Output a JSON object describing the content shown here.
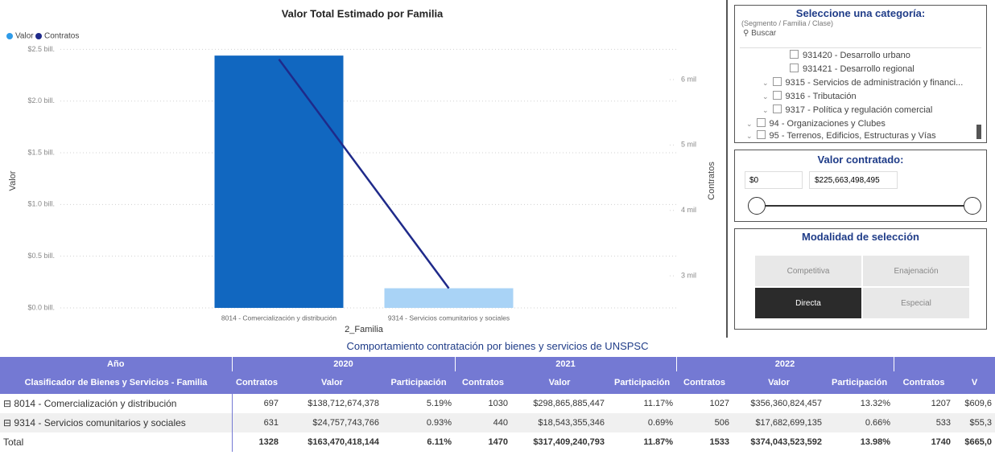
{
  "chart_data": {
    "type": "bar_line",
    "title": "Valor Total Estimado por Familia",
    "y_label": "Valor",
    "y2_label": "Contratos",
    "x_label": "2_Familia",
    "categories": [
      "8014 - Comercialización y distribución",
      "9314 - Servicios comunitarios y sociales"
    ],
    "series": [
      {
        "name": "Valor",
        "type": "bar",
        "legend_color": "#2f9be8",
        "colors": [
          "#1167c0",
          "#a9d3f6"
        ],
        "values": [
          2.44,
          0.19
        ]
      },
      {
        "name": "Contratos",
        "type": "line",
        "axis": "y2",
        "color": "#1f2a8a",
        "values": [
          6.31,
          2.81
        ]
      }
    ],
    "ylim": [
      0,
      2.55
    ],
    "yticks": [
      {
        "value": 0,
        "label": "$0.0 bill."
      },
      {
        "value": 0.5,
        "label": "$0.5 bill."
      },
      {
        "value": 1,
        "label": "$1.0 bill."
      },
      {
        "value": 1.5,
        "label": "$1.5 bill."
      },
      {
        "value": 2,
        "label": "$2.0 bill."
      },
      {
        "value": 2.5,
        "label": "$2.5 bill."
      }
    ],
    "y2lim": [
      2.51,
      6.54
    ],
    "y2ticks": [
      {
        "value": 3,
        "label": "3 mil"
      },
      {
        "value": 4,
        "label": "4 mil"
      },
      {
        "value": 5,
        "label": "5 mil"
      },
      {
        "value": 6,
        "label": "6 mil"
      }
    ],
    "grid": true
  },
  "category_slicer": {
    "title": "Seleccione una categoría:",
    "subtitle": "(Segmento / Familia / Clase)",
    "search": "Buscar",
    "items": [
      "931420 - Desarrollo urbano",
      "931421 - Desarrollo regional",
      "9315 - Servicios de administración y financi...",
      "9316 - Tributación",
      "9317 - Política y regulación comercial",
      "94 - Organizaciones y Clubes",
      "95 - Terrenos, Edificios, Estructuras y Vías"
    ]
  },
  "value_slicer": {
    "title": "Valor contratado:",
    "min": "$0",
    "max": "$225,663,498,495"
  },
  "mode_slicer": {
    "title": "Modalidad de selección",
    "options": [
      "Competitiva",
      "Enajenación",
      "Directa",
      "Especial"
    ]
  },
  "table": {
    "title": "Comportamiento contratación por bienes y servicios de UNSPSC",
    "year_header": "Año",
    "years": [
      "2020",
      "2021",
      "2022"
    ],
    "columns": [
      "Clasificador de Bienes y Servicios - Familia",
      "Contratos",
      "Valor",
      "Participación",
      "Contratos",
      "Valor",
      "Participación",
      "Contratos",
      "Valor",
      "Participación",
      "Contratos",
      "V"
    ],
    "rows": [
      [
        "8014 - Comercialización y distribución",
        "697",
        "$138,712,674,378",
        "5.19%",
        "1030",
        "$298,865,885,447",
        "11.17%",
        "1027",
        "$356,360,824,457",
        "13.32%",
        "1207",
        "$609,6"
      ],
      [
        "9314 - Servicios comunitarios y sociales",
        "631",
        "$24,757,743,766",
        "0.93%",
        "440",
        "$18,543,355,346",
        "0.69%",
        "506",
        "$17,682,699,135",
        "0.66%",
        "533",
        "$55,3"
      ],
      [
        "Total",
        "1328",
        "$163,470,418,144",
        "6.11%",
        "1470",
        "$317,409,240,793",
        "11.87%",
        "1533",
        "$374,043,523,592",
        "13.98%",
        "1740",
        "$665,0"
      ]
    ]
  }
}
